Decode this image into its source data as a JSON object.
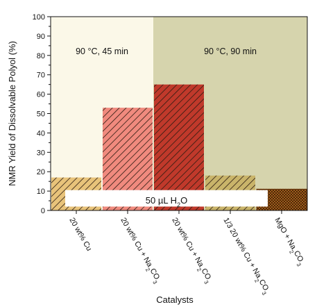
{
  "chart_data": {
    "type": "bar",
    "title": "",
    "xlabel": "Catalysts",
    "ylabel": "NMR Yield of Dissolvable Polyol (%)",
    "ylim": [
      0,
      100
    ],
    "yticks": [
      0,
      10,
      20,
      30,
      40,
      50,
      60,
      70,
      80,
      90,
      100
    ],
    "categories": [
      "20 wt% Cu",
      "20 wt% Cu + Na2CO3",
      "20 wt% Cu + Na2CO3",
      "1/3 20 wt% Cu + Na2CO3",
      "MgO + Na2CO3"
    ],
    "values": [
      17,
      53,
      65,
      18,
      11
    ],
    "bar_colors": [
      "#e8c37a",
      "#f08a7e",
      "#c0392b",
      "#c9b46a",
      "#b86a1e"
    ],
    "grid": false,
    "regions": [
      {
        "label": "90 °C, 45 min",
        "from_index": 0,
        "to_index": 1,
        "color": "#fbf8e8"
      },
      {
        "label": "90 °C, 90 min",
        "from_index": 2,
        "to_index": 4,
        "color": "#d6d4ad"
      }
    ],
    "annotation": "50 µL H2O"
  }
}
